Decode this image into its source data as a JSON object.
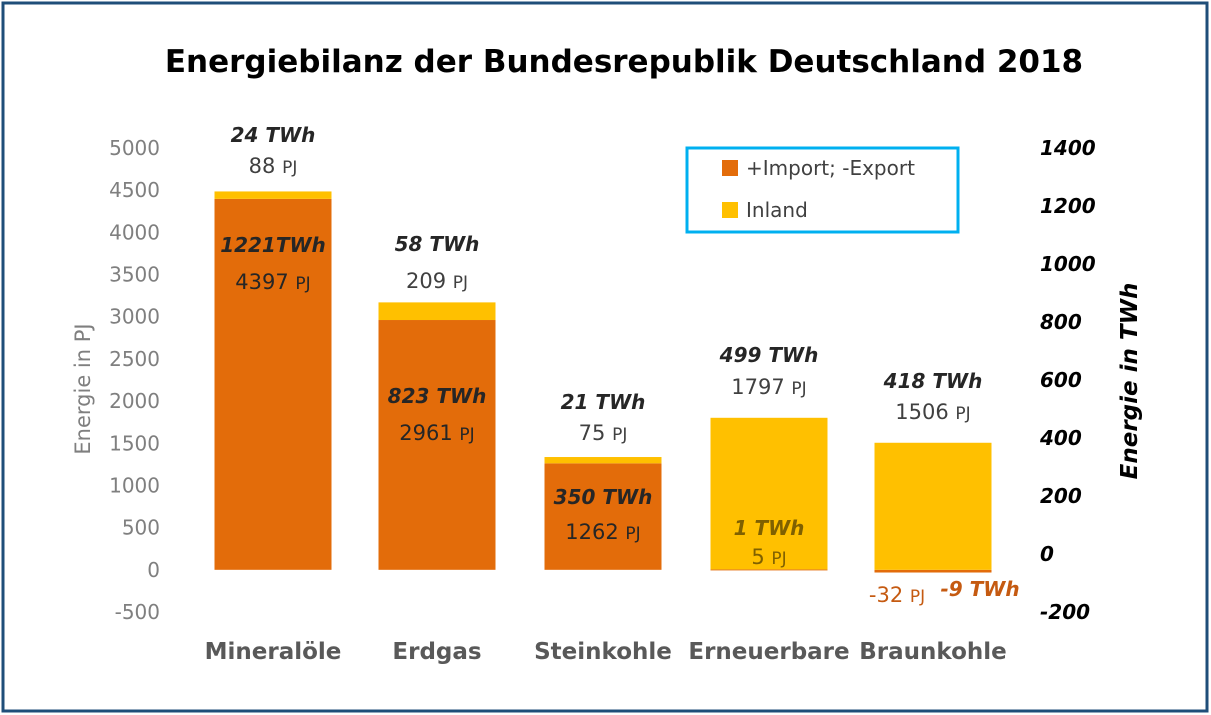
{
  "chart_data": {
    "type": "bar",
    "stacked": true,
    "title": "Energiebilanz der Bundesrepublik Deutschland 2018",
    "ylabel": "Energie in PJ",
    "y2label": "Energie in TWh",
    "ylim": [
      -500,
      5000
    ],
    "y2lim": [
      -200,
      1400
    ],
    "yticks": [
      "5000",
      "4500",
      "4000",
      "3500",
      "3000",
      "2500",
      "2000",
      "1500",
      "1000",
      "500",
      "0",
      "-500"
    ],
    "y2ticks": [
      "1400",
      "1200",
      "1000",
      "800",
      "600",
      "400",
      "200",
      "0",
      "-200"
    ],
    "grid": false,
    "legend_position": "top-right",
    "categories": [
      "Mineralöle",
      "Erdgas",
      "Steinkohle",
      "Erneuerbare",
      "Braunkohle"
    ],
    "series": [
      {
        "name": "+Import; -Export",
        "color": "#E36C0A",
        "values": [
          4397,
          2961,
          1262,
          5,
          -32
        ]
      },
      {
        "name": "Inland",
        "color": "#FFC000",
        "values": [
          88,
          209,
          75,
          1797,
          1506
        ]
      }
    ],
    "labels": {
      "import": [
        {
          "twh": "1221TWh",
          "pj": "4397",
          "unit": "PJ"
        },
        {
          "twh": "823 TWh",
          "pj": "2961",
          "unit": "PJ"
        },
        {
          "twh": "350 TWh",
          "pj": "1262",
          "unit": "PJ"
        },
        {
          "twh": "1 TWh",
          "pj": "5",
          "unit": "PJ"
        },
        {
          "twh": "-9 TWh",
          "pj": "-32",
          "unit": "PJ"
        }
      ],
      "inland": [
        {
          "twh": "24 TWh",
          "pj": "88",
          "unit": "PJ"
        },
        {
          "twh": "58 TWh",
          "pj": "209",
          "unit": "PJ"
        },
        {
          "twh": "21 TWh",
          "pj": "75",
          "unit": "PJ"
        },
        {
          "twh": "499  TWh",
          "pj": "1797",
          "unit": "PJ"
        },
        {
          "twh": "418 TWh",
          "pj": "1506",
          "unit": "PJ"
        }
      ]
    }
  },
  "colors": {
    "frame_border": "#1F4E79",
    "legend_border": "#00B0F0",
    "axis_text": "#7F7F7F",
    "category_text": "#595959",
    "title_text": "#000000",
    "negative_label": "#C55A11"
  }
}
